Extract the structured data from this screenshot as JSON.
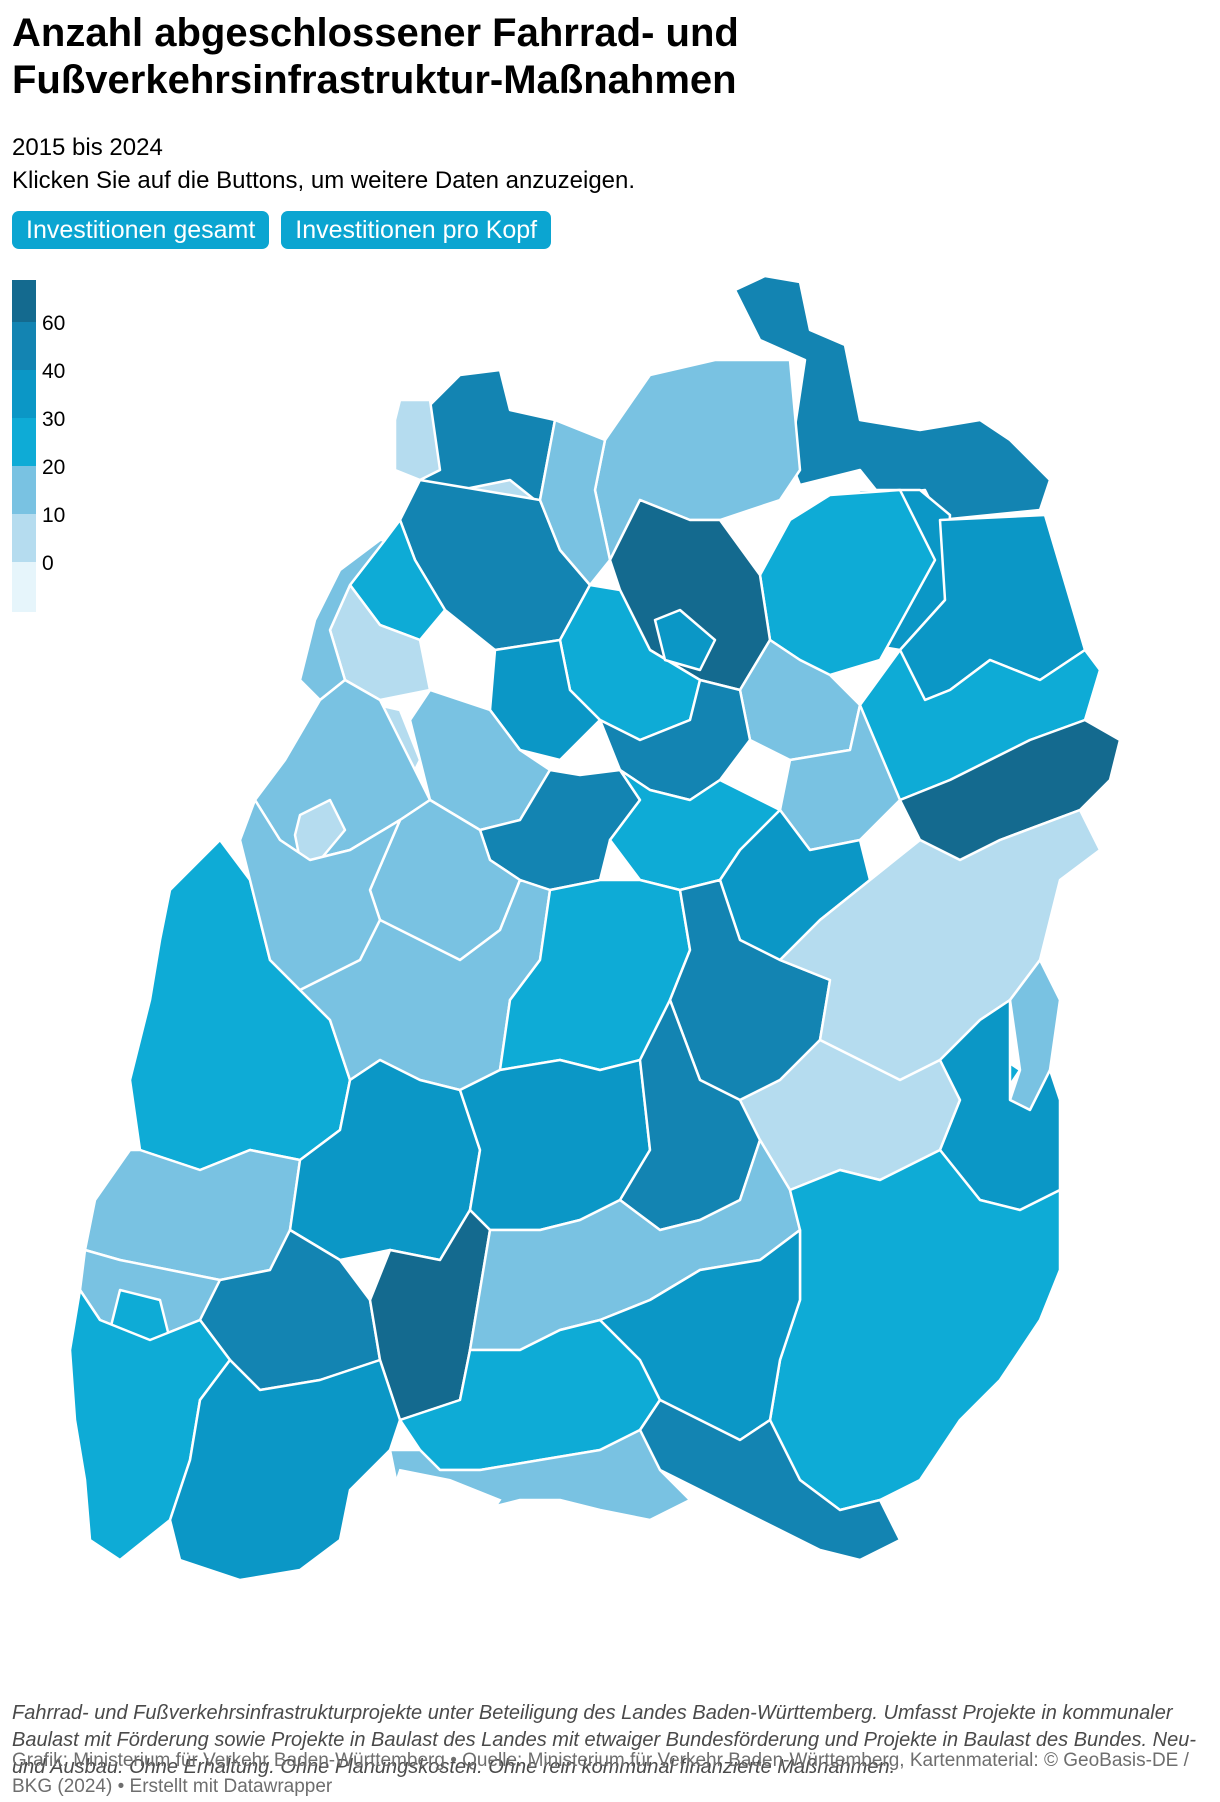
{
  "title": "Anzahl abgeschlossener Fahrrad- und Fußverkehrsinfrastruktur-Maßnahmen",
  "subtitle_1": "2015 bis 2024",
  "subtitle_2": "Klicken Sie auf die Buttons, um weitere Daten anzuzeigen.",
  "buttons": {
    "total": "Investitionen gesamt",
    "per_capita": "Investitionen pro Kopf"
  },
  "legend": {
    "ticks": [
      "60",
      "40",
      "30",
      "20",
      "10",
      "0"
    ],
    "colors": [
      "#146a8f",
      "#1384b2",
      "#0b97c6",
      "#0eabd6",
      "#79c2e2",
      "#b5dcef",
      "#e6f5fb"
    ]
  },
  "notes": "Fahrrad- und Fußverkehrsinfrastrukturprojekte unter Beteiligung des Landes Baden-Württemberg. Umfasst Projekte in kommunaler Baulast mit Förderung sowie Projekte in Baulast des Landes mit etwaiger Bundesförderung und Projekte in Baulast des Bundes. Neu- und Ausbau. Ohne Erhaltung. Ohne Planungskosten. Ohne rein kommunal finanzierte Maßnahmen.",
  "credit": "Grafik: Ministerium für Verkehr Baden-Württemberg • Quelle: Ministerium für Verkehr Baden-Württemberg, Kartenmaterial: © GeoBasis-DE / BKG (2024) • Erstellt mit Datawrapper"
}
